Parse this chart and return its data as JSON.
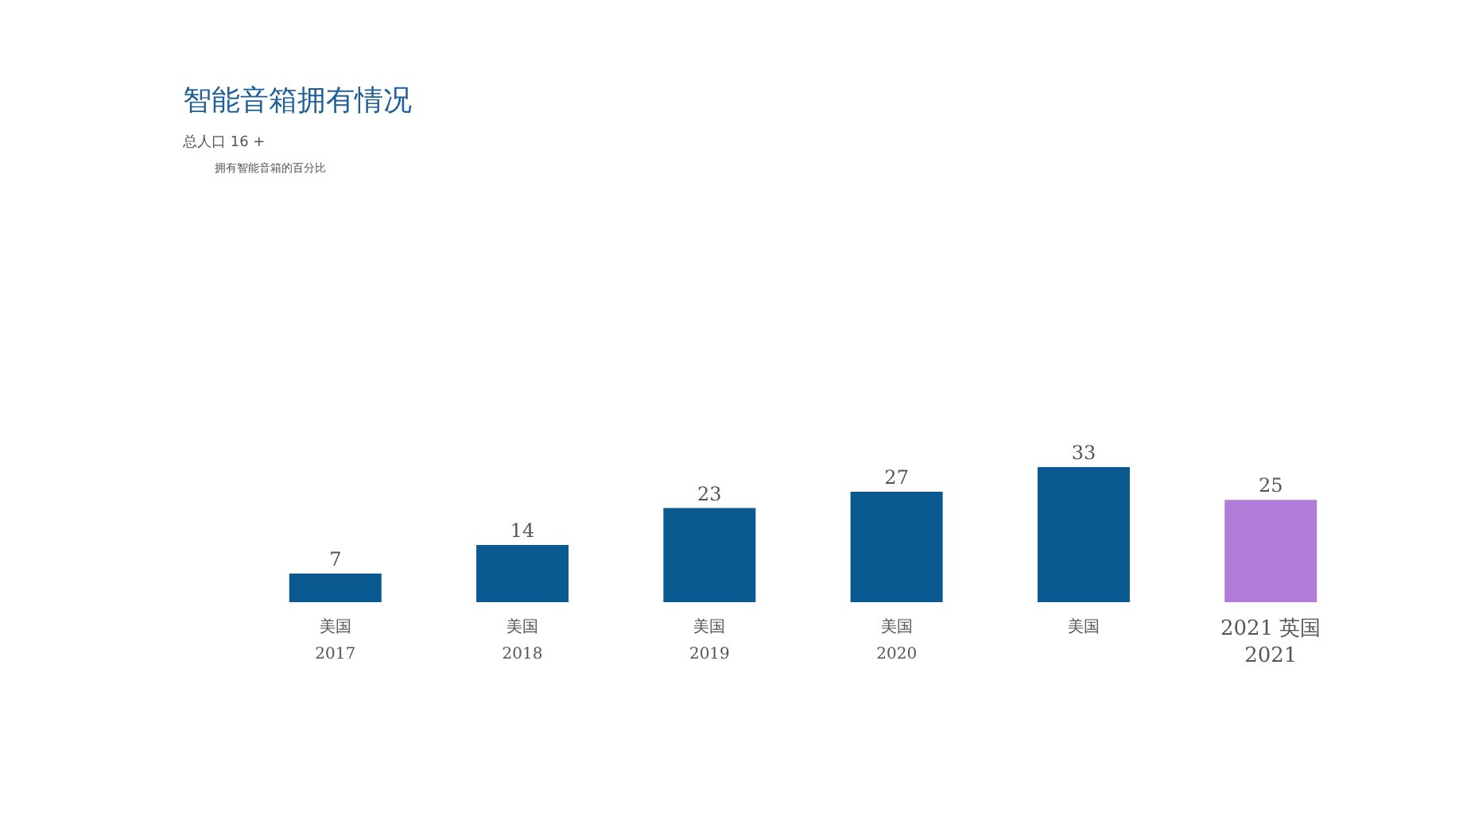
{
  "chart_data": {
    "type": "bar",
    "title": "智能音箱拥有情况",
    "subtitle": "总人口 16 +",
    "annotations": [
      "拥有智能音箱的百分比"
    ],
    "categories": [
      "美国\n2017",
      "美国\n2018",
      "美国\n2019",
      "美国\n2020",
      "美国",
      "2021 英国\n2021"
    ],
    "values": [
      7,
      14,
      23,
      27,
      33,
      25
    ],
    "colors": [
      "#0a5a91",
      "#0a5a91",
      "#0a5a91",
      "#0a5a91",
      "#0a5a91",
      "#b07cd8"
    ],
    "data_labels": true
  }
}
